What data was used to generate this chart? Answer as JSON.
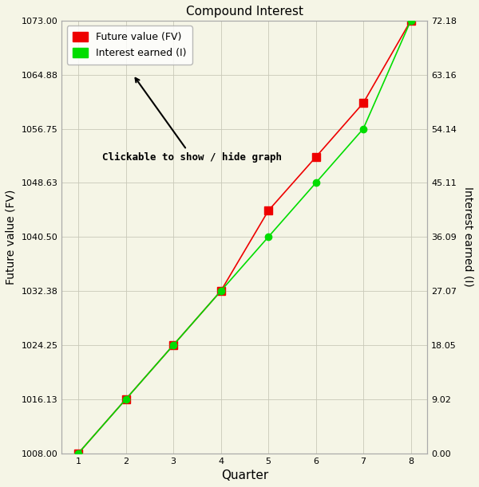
{
  "title": "Compound Interest",
  "xlabel": "Quarter",
  "ylabel_left": "Future value (FV)",
  "ylabel_right": "Interest earned (I)",
  "x": [
    1,
    2,
    3,
    4,
    5,
    6,
    7,
    8
  ],
  "fv": [
    1008.0,
    1016.13,
    1024.25,
    1032.38,
    1044.44,
    1052.5,
    1060.63,
    1073.0
  ],
  "interest": [
    0.0,
    9.02,
    18.05,
    27.07,
    36.09,
    45.11,
    54.14,
    72.18
  ],
  "fv_color": "#ee0000",
  "interest_color": "#00dd00",
  "background_color": "#f5f5e6",
  "ylim_left": [
    1008.0,
    1073.0
  ],
  "ylim_right": [
    0.0,
    72.18
  ],
  "yticks_left": [
    1008.0,
    1016.13,
    1024.25,
    1032.38,
    1040.5,
    1048.63,
    1056.75,
    1064.88,
    1073.0
  ],
  "yticks_right": [
    0.0,
    9.02,
    18.05,
    27.07,
    36.09,
    45.11,
    54.14,
    63.16,
    72.18
  ],
  "xticks": [
    1,
    2,
    3,
    4,
    5,
    6,
    7,
    8
  ],
  "legend_fv": "Future value (FV)",
  "legend_interest": "Interest earned (I)",
  "annotation_text": "Clickable to show / hide graph",
  "fv_marker": "s",
  "interest_marker": "o",
  "markersize_fv": 7,
  "markersize_interest": 6,
  "linewidth": 1.2
}
